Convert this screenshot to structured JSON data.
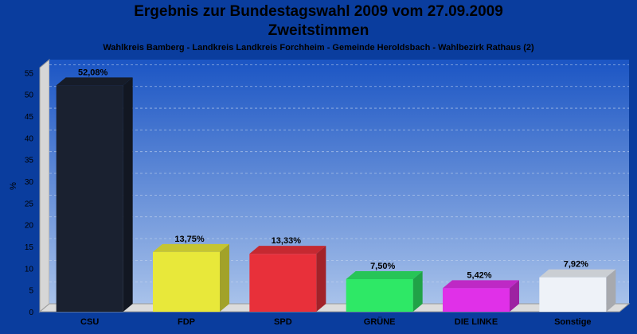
{
  "chart_data": {
    "type": "bar",
    "title": "Ergebnis zur Bundestagswahl 2009 vom 27.09.2009",
    "subtitle": "Zweitstimmen",
    "caption": "Wahlkreis Bamberg - Landkreis Landkreis Forchheim - Gemeinde Heroldsbach - Wahlbezirk Rathaus (2)",
    "ylabel": "%",
    "xlabel": "",
    "ylim": [
      0,
      58
    ],
    "yticks": [
      0,
      5,
      10,
      15,
      20,
      25,
      30,
      35,
      40,
      45,
      50,
      55
    ],
    "grid": true,
    "categories": [
      "CSU",
      "FDP",
      "SPD",
      "GRÜNE",
      "DIE LINKE",
      "Sonstige"
    ],
    "values": [
      52.08,
      13.75,
      13.33,
      7.5,
      5.42,
      7.92
    ],
    "value_labels": [
      "52,08%",
      "13,75%",
      "13,33%",
      "7,50%",
      "5,42%",
      "7,92%"
    ],
    "colors": [
      "#1a2130",
      "#e8e83a",
      "#e8303a",
      "#2ee866",
      "#e030e8",
      "#eef2f8"
    ]
  }
}
